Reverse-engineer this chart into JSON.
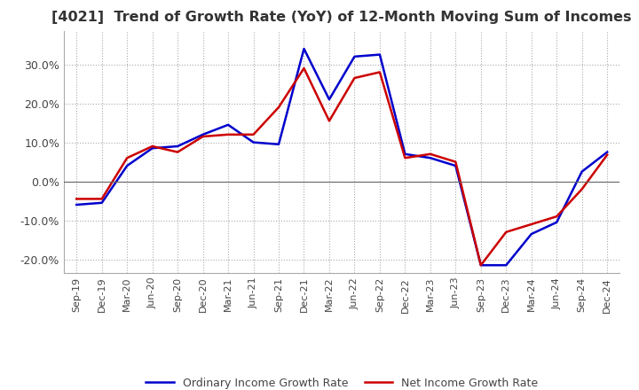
{
  "title": "[4021]  Trend of Growth Rate (YoY) of 12-Month Moving Sum of Incomes",
  "title_fontsize": 11.5,
  "title_color": "#333333",
  "ylim": [
    -0.235,
    0.385
  ],
  "yticks": [
    -0.2,
    -0.1,
    0.0,
    0.1,
    0.2,
    0.3
  ],
  "background_color": "#ffffff",
  "plot_bg_color": "#ffffff",
  "grid_color": "#aaaaaa",
  "legend_labels": [
    "Ordinary Income Growth Rate",
    "Net Income Growth Rate"
  ],
  "legend_colors": [
    "#0000cc",
    "#cc0000"
  ],
  "x_labels": [
    "Sep-19",
    "Dec-19",
    "Mar-20",
    "Jun-20",
    "Sep-20",
    "Dec-20",
    "Mar-21",
    "Jun-21",
    "Sep-21",
    "Dec-21",
    "Mar-22",
    "Jun-22",
    "Sep-22",
    "Dec-22",
    "Mar-23",
    "Jun-23",
    "Sep-23",
    "Dec-23",
    "Mar-24",
    "Jun-24",
    "Sep-24",
    "Dec-24"
  ],
  "ordinary_income": [
    -0.06,
    -0.055,
    0.04,
    0.085,
    0.09,
    0.12,
    0.145,
    0.1,
    0.095,
    0.34,
    0.21,
    0.32,
    0.325,
    0.07,
    0.06,
    0.04,
    -0.215,
    -0.215,
    -0.135,
    -0.105,
    0.025,
    0.075
  ],
  "net_income": [
    -0.045,
    -0.045,
    0.06,
    0.09,
    0.075,
    0.115,
    0.12,
    0.12,
    0.19,
    0.29,
    0.155,
    0.265,
    0.28,
    0.06,
    0.07,
    0.05,
    -0.215,
    -0.13,
    -0.11,
    -0.09,
    -0.02,
    0.068
  ],
  "zero_line_color": "#666666"
}
